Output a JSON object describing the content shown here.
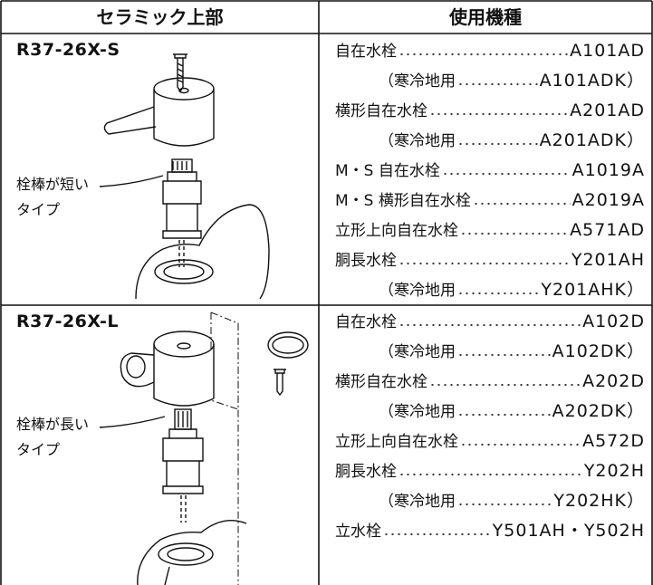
{
  "header": {
    "left": "セラミック上部",
    "right": "使用機種"
  },
  "rows": [
    {
      "model": "R37-26X-S",
      "callout": [
        "栓棒が短い",
        "タイプ"
      ],
      "items": [
        {
          "name": "自在水栓",
          "model": "A101AD"
        },
        {
          "name": "（寒冷地用",
          "model": "A101ADK）"
        },
        {
          "name": "横形自在水栓",
          "model": "A201AD"
        },
        {
          "name": "（寒冷地用",
          "model": "A201ADK）"
        },
        {
          "name": "M・S 自在水栓",
          "model": "A1019A"
        },
        {
          "name": "M・S 横形自在水栓",
          "model": "A2019A"
        },
        {
          "name": "立形上向自在水栓",
          "model": "A571AD"
        },
        {
          "name": "胴長水栓",
          "model": "Y201AH"
        },
        {
          "name": "（寒冷地用",
          "model": "Y201AHK）"
        }
      ]
    },
    {
      "model": "R37-26X-L",
      "callout": [
        "栓棒が長い",
        "タイプ"
      ],
      "items": [
        {
          "name": "自在水栓",
          "model": "A102D"
        },
        {
          "name": "（寒冷地用",
          "model": "A102DK）"
        },
        {
          "name": "横形自在水栓",
          "model": "A202D"
        },
        {
          "name": "（寒冷地用",
          "model": "A202DK）"
        },
        {
          "name": "立形上向自在水栓",
          "model": "A572D"
        },
        {
          "name": "胴長水栓",
          "model": "Y202H"
        },
        {
          "name": "（寒冷地用",
          "model": "Y202HK）"
        },
        {
          "name": "立水栓",
          "model": "Y501AH・Y502H"
        }
      ]
    }
  ]
}
